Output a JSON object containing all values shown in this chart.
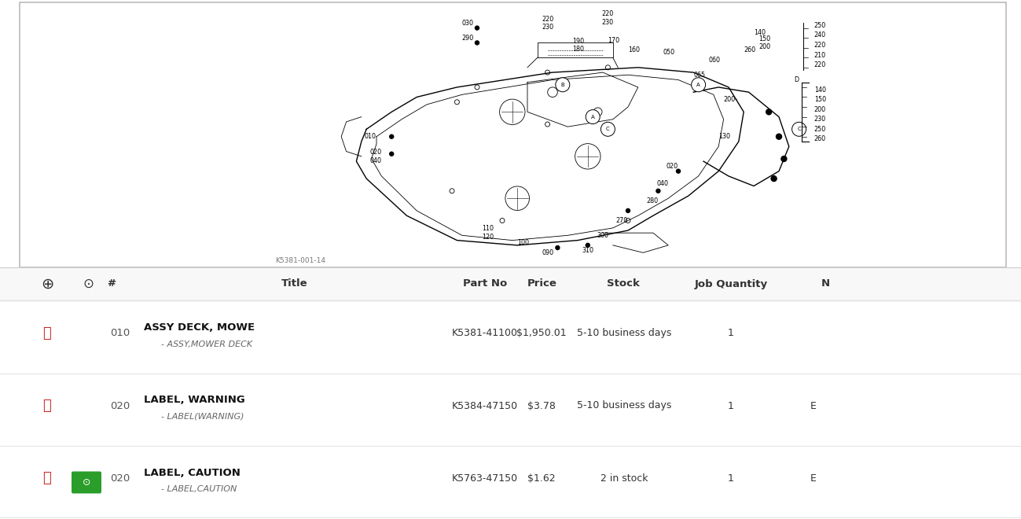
{
  "bg_color": "#ffffff",
  "diagram_border": "#bbbbbb",
  "diagram_label": "K5381-001-14",
  "table_header_bg": "#f8f8f8",
  "table_border": "#dddddd",
  "header_text_color": "#333333",
  "row_separator": "#e5e5e5",
  "red_icon_color": "#cc2222",
  "green_icon_color": "#2a9d2a",
  "italic_color": "#666666",
  "bold_color": "#111111",
  "col_labels": [
    "",
    "",
    "#",
    "Title",
    "Part No",
    "Price",
    "Stock",
    "Job Quantity",
    "N"
  ],
  "rows": [
    {
      "num": "010",
      "title": "ASSY DECK, MOWE",
      "subtitle": "- ASSY,MOWER DECK",
      "part_no": "K5381-41100",
      "price": "$1,950.01",
      "stock": "5-10 business days",
      "qty": "1",
      "n": "",
      "has_photo": false
    },
    {
      "num": "020",
      "title": "LABEL, WARNING",
      "subtitle": "- LABEL(WARNING)",
      "part_no": "K5384-47150",
      "price": "$3.78",
      "stock": "5-10 business days",
      "qty": "1",
      "n": "E",
      "has_photo": false
    },
    {
      "num": "020",
      "title": "LABEL, CAUTION",
      "subtitle": "- LABEL,CAUTION",
      "part_no": "K5763-47150",
      "price": "$1.62",
      "stock": "2 in stock",
      "qty": "1",
      "n": "E",
      "has_photo": true
    }
  ]
}
